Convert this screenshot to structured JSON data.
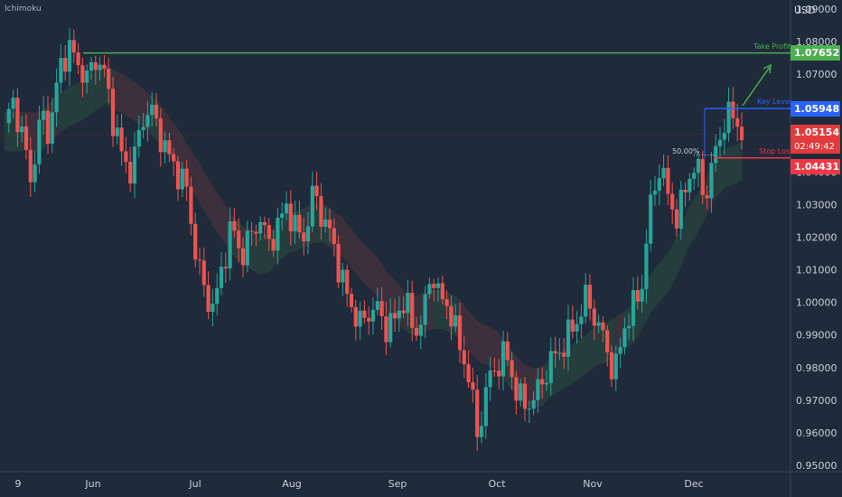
{
  "indicator": "Ichimoku",
  "currency": "USD",
  "colors": {
    "background": "#1f2a3a",
    "candle_up": "#26a69a",
    "candle_down": "#ef5350",
    "take_profit": "#4caf50",
    "key_level": "#2962ff",
    "stop_loss": "#f23645",
    "current": "#e23b3b"
  },
  "levels": {
    "take_profit": {
      "label": "Take Profit",
      "value": "1.07652"
    },
    "key_level": {
      "label": "Key Level",
      "value": "1.05948"
    },
    "current": {
      "value": "1.05154",
      "countdown": "02:49:42"
    },
    "stop_loss": {
      "label": "Stop Loss",
      "value": "1.04431"
    },
    "fib": {
      "label": "50.00%"
    }
  },
  "chart_data": {
    "type": "line",
    "xlabel": "",
    "ylabel": "",
    "ylim": [
      0.95,
      1.09
    ],
    "y_ticks": [
      "1.09000",
      "1.08000",
      "1.07000",
      "1.06000",
      "1.05000",
      "1.04000",
      "1.03000",
      "1.02000",
      "1.01000",
      "1.00000",
      "0.99000",
      "0.98000",
      "0.97000",
      "0.96000",
      "0.95000"
    ],
    "x_ticks": [
      "9",
      "Jun",
      "Jul",
      "Aug",
      "Sep",
      "Oct",
      "Nov",
      "Dec"
    ],
    "grid": false,
    "series": [
      {
        "values": [
          1.055,
          1.062,
          1.05,
          1.037,
          1.058,
          1.052,
          1.072,
          1.078,
          1.074,
          1.068,
          1.075,
          1.07,
          1.055,
          1.044,
          1.04,
          1.055,
          1.06,
          1.052,
          1.045,
          1.04,
          1.035,
          1.015,
          1.003,
          0.998,
          1.012,
          1.024,
          1.014,
          1.02,
          1.026,
          1.018,
          1.023,
          1.03,
          1.022,
          1.02,
          1.035,
          1.025,
          1.02,
          1.007,
          1.0,
          0.993,
          0.997,
          0.998,
          0.992,
          0.995,
          1.002,
          0.99,
          0.996,
          1.01,
          1.0,
          0.998,
          0.986,
          0.978,
          0.958,
          0.975,
          0.98,
          0.985,
          0.975,
          0.968,
          0.97,
          0.975,
          0.982,
          0.985,
          0.99,
          0.995,
          1.002,
          0.994,
          0.988,
          0.977,
          0.992,
          0.998,
          1.005,
          1.03,
          1.042,
          1.032,
          1.025,
          1.038,
          1.042,
          1.032,
          1.045,
          1.055,
          1.058,
          1.052
        ]
      }
    ]
  }
}
